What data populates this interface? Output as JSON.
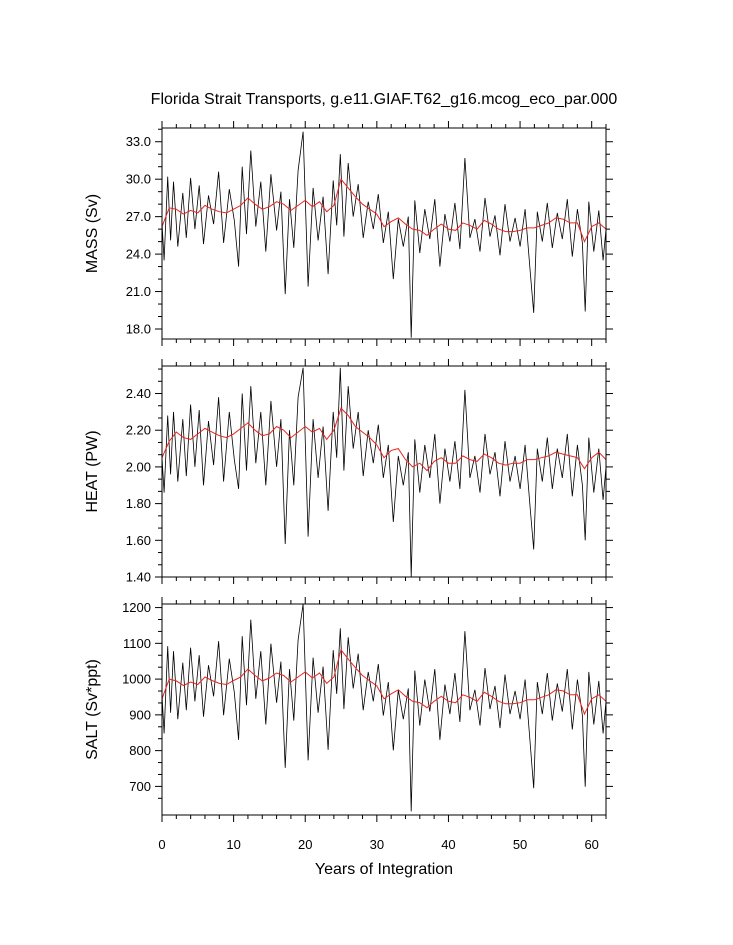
{
  "chart_data": {
    "type": "line",
    "title": "Florida Strait Transports, g.e11.GIAF.T62_g16.mcog_eco_par.000",
    "xlabel": "Years of Integration",
    "xlim": [
      0,
      62
    ],
    "xticks": [
      0,
      10,
      20,
      30,
      40,
      50,
      60
    ],
    "grid": false,
    "colors": {
      "raw": "#000000",
      "smoothed": "#e8251f"
    },
    "panels": [
      {
        "ylabel": "MASS (Sv)",
        "ylim": [
          17.2,
          34.1
        ],
        "yticks": [
          18.0,
          21.0,
          24.0,
          27.0,
          30.0,
          33.0
        ],
        "ytick_labels": [
          "18.0",
          "21.0",
          "24.0",
          "27.0",
          "30.0",
          "33.0"
        ],
        "smoothed": {
          "x": [
            0,
            1,
            2,
            3,
            4,
            5,
            6,
            7,
            8,
            9,
            10,
            11,
            12,
            13,
            14,
            15,
            16,
            17,
            18,
            19,
            20,
            21,
            22,
            23,
            24,
            25,
            26,
            27,
            28,
            29,
            30,
            31,
            32,
            33,
            34,
            35,
            36,
            37,
            38,
            39,
            40,
            41,
            42,
            43,
            44,
            45,
            46,
            47,
            48,
            49,
            50,
            51,
            52,
            53,
            54,
            55,
            56,
            57,
            58,
            59,
            60,
            61,
            62
          ],
          "y": [
            26.2,
            27.7,
            27.6,
            27.2,
            27.5,
            27.3,
            27.9,
            27.6,
            27.4,
            27.3,
            27.6,
            27.9,
            28.5,
            28.0,
            27.6,
            27.8,
            28.2,
            28.0,
            27.5,
            27.9,
            28.3,
            27.8,
            28.2,
            27.4,
            27.9,
            30.0,
            29.3,
            28.6,
            28.0,
            27.6,
            27.2,
            26.2,
            26.6,
            26.9,
            26.4,
            26.0,
            25.9,
            25.5,
            26.0,
            26.4,
            26.0,
            25.9,
            26.5,
            26.3,
            26.0,
            26.7,
            26.4,
            26.0,
            25.8,
            25.8,
            25.9,
            26.1,
            26.1,
            26.3,
            26.5,
            26.9,
            26.8,
            26.5,
            26.5,
            25.0,
            26.2,
            26.5,
            26.0
          ]
        },
        "raw": {
          "x": [
            0,
            0.3,
            0.8,
            1.2,
            1.6,
            2.2,
            2.9,
            3.4,
            4.0,
            4.6,
            5.2,
            5.8,
            6.5,
            7.2,
            7.9,
            8.6,
            9.4,
            10.1,
            10.7,
            11.2,
            11.8,
            12.4,
            13.1,
            13.8,
            14.5,
            15.2,
            16.0,
            16.6,
            17.2,
            17.8,
            18.4,
            19.0,
            19.7,
            20.4,
            21.1,
            21.8,
            22.5,
            23.2,
            23.9,
            24.4,
            24.9,
            25.4,
            26.0,
            26.7,
            27.4,
            28.1,
            28.8,
            29.5,
            30.2,
            30.9,
            31.6,
            32.3,
            33.0,
            33.7,
            34.4,
            34.8,
            35.3,
            36.0,
            36.7,
            37.4,
            38.1,
            38.8,
            39.5,
            40.2,
            40.9,
            41.6,
            42.3,
            43.0,
            43.7,
            44.4,
            45.1,
            45.8,
            46.5,
            47.2,
            47.9,
            48.6,
            49.3,
            50.0,
            50.7,
            51.4,
            51.9,
            52.4,
            53.1,
            53.8,
            54.5,
            55.2,
            55.9,
            56.6,
            57.3,
            58.0,
            58.7,
            59.1,
            59.6,
            60.3,
            61.0,
            61.6,
            62.0
          ],
          "y": [
            26.5,
            23.5,
            30.2,
            25.1,
            29.8,
            24.6,
            28.9,
            25.3,
            30.1,
            26.0,
            29.5,
            24.8,
            28.7,
            26.4,
            30.6,
            24.9,
            29.2,
            26.7,
            23.0,
            31.0,
            25.6,
            32.3,
            26.2,
            29.8,
            24.2,
            30.4,
            25.9,
            29.0,
            20.8,
            28.4,
            24.5,
            30.7,
            33.8,
            21.4,
            29.3,
            25.1,
            28.6,
            22.4,
            29.9,
            26.3,
            32.0,
            25.4,
            31.3,
            27.0,
            29.6,
            25.3,
            28.2,
            26.0,
            28.8,
            24.9,
            27.4,
            22.0,
            26.8,
            24.6,
            27.0,
            17.3,
            28.3,
            24.1,
            27.6,
            25.2,
            28.4,
            23.0,
            27.2,
            25.0,
            28.1,
            24.4,
            31.7,
            25.3,
            26.8,
            24.2,
            28.5,
            25.4,
            27.1,
            23.9,
            28.0,
            25.0,
            26.9,
            24.6,
            27.6,
            22.7,
            19.3,
            27.4,
            25.0,
            28.1,
            24.5,
            27.3,
            25.2,
            28.4,
            23.8,
            27.6,
            24.9,
            19.4,
            28.2,
            24.2,
            27.5,
            23.5,
            26.0
          ]
        }
      },
      {
        "ylabel": "HEAT (PW)",
        "ylim": [
          1.4,
          2.55
        ],
        "yticks": [
          1.4,
          1.6,
          1.8,
          2.0,
          2.2,
          2.4
        ],
        "ytick_labels": [
          "1.40",
          "1.60",
          "1.80",
          "2.00",
          "2.20",
          "2.40"
        ],
        "smoothed": {
          "x": [
            0,
            1,
            2,
            3,
            4,
            5,
            6,
            7,
            8,
            9,
            10,
            11,
            12,
            13,
            14,
            15,
            16,
            17,
            18,
            19,
            20,
            21,
            22,
            23,
            24,
            25,
            26,
            27,
            28,
            29,
            30,
            31,
            32,
            33,
            34,
            35,
            36,
            37,
            38,
            39,
            40,
            41,
            42,
            43,
            44,
            45,
            46,
            47,
            48,
            49,
            50,
            51,
            52,
            53,
            54,
            55,
            56,
            57,
            58,
            59,
            60,
            61,
            62
          ],
          "y": [
            2.05,
            2.14,
            2.19,
            2.16,
            2.15,
            2.18,
            2.21,
            2.19,
            2.17,
            2.16,
            2.18,
            2.21,
            2.24,
            2.2,
            2.17,
            2.18,
            2.22,
            2.2,
            2.16,
            2.19,
            2.22,
            2.19,
            2.21,
            2.15,
            2.2,
            2.32,
            2.28,
            2.22,
            2.19,
            2.16,
            2.12,
            2.05,
            2.09,
            2.1,
            2.04,
            2.0,
            2.02,
            1.98,
            2.03,
            2.05,
            2.02,
            2.02,
            2.06,
            2.04,
            2.03,
            2.07,
            2.05,
            2.02,
            2.01,
            2.02,
            2.02,
            2.04,
            2.04,
            2.05,
            2.06,
            2.08,
            2.07,
            2.06,
            2.05,
            1.99,
            2.05,
            2.08,
            2.04
          ]
        },
        "raw": {
          "x": [
            0,
            0.3,
            0.8,
            1.2,
            1.6,
            2.2,
            2.9,
            3.4,
            4.0,
            4.6,
            5.2,
            5.8,
            6.5,
            7.2,
            7.9,
            8.6,
            9.4,
            10.1,
            10.7,
            11.2,
            11.8,
            12.4,
            13.1,
            13.8,
            14.5,
            15.2,
            16.0,
            16.6,
            17.2,
            17.8,
            18.4,
            19.0,
            19.7,
            20.4,
            21.1,
            21.8,
            22.5,
            23.2,
            23.9,
            24.4,
            24.9,
            25.4,
            26.0,
            26.7,
            27.4,
            28.1,
            28.8,
            29.5,
            30.2,
            30.9,
            31.6,
            32.3,
            33.0,
            33.7,
            34.4,
            34.8,
            35.3,
            36.0,
            36.7,
            37.4,
            38.1,
            38.8,
            39.5,
            40.2,
            40.9,
            41.6,
            42.3,
            43.0,
            43.7,
            44.4,
            45.1,
            45.8,
            46.5,
            47.2,
            47.9,
            48.6,
            49.3,
            50.0,
            50.7,
            51.4,
            51.9,
            52.4,
            53.1,
            53.8,
            54.5,
            55.2,
            55.9,
            56.6,
            57.3,
            58.0,
            58.7,
            59.1,
            59.6,
            60.3,
            61.0,
            61.6,
            62.0
          ],
          "y": [
            2.05,
            1.86,
            2.28,
            1.96,
            2.3,
            1.92,
            2.26,
            1.95,
            2.34,
            2.0,
            2.31,
            1.9,
            2.25,
            2.01,
            2.38,
            1.92,
            2.3,
            2.04,
            1.88,
            2.4,
            1.98,
            2.44,
            2.02,
            2.3,
            1.9,
            2.36,
            2.0,
            2.26,
            1.58,
            2.2,
            1.9,
            2.38,
            2.54,
            1.62,
            2.26,
            1.94,
            2.22,
            1.76,
            2.3,
            2.05,
            2.54,
            1.98,
            2.44,
            2.1,
            2.3,
            1.95,
            2.2,
            2.02,
            2.23,
            1.94,
            2.12,
            1.7,
            2.06,
            1.9,
            2.08,
            1.4,
            2.15,
            1.86,
            2.12,
            1.94,
            2.18,
            1.8,
            2.1,
            1.92,
            2.14,
            1.88,
            2.42,
            1.94,
            2.06,
            1.86,
            2.18,
            1.96,
            2.08,
            1.84,
            2.14,
            1.92,
            2.06,
            1.88,
            2.12,
            1.78,
            1.55,
            2.1,
            1.92,
            2.16,
            1.88,
            2.1,
            1.94,
            2.18,
            1.84,
            2.12,
            1.9,
            1.6,
            2.16,
            1.86,
            2.1,
            1.82,
            2.0
          ]
        }
      },
      {
        "ylabel": "SALT (Sv*ppt)",
        "ylim": [
          620,
          1210
        ],
        "yticks": [
          700,
          800,
          900,
          1000,
          1100,
          1200
        ],
        "ytick_labels": [
          "700",
          "800",
          "900",
          "1000",
          "1100",
          "1200"
        ],
        "smoothed": {
          "x": [
            0,
            1,
            2,
            3,
            4,
            5,
            6,
            7,
            8,
            9,
            10,
            11,
            12,
            13,
            14,
            15,
            16,
            17,
            18,
            19,
            20,
            21,
            22,
            23,
            24,
            25,
            26,
            27,
            28,
            29,
            30,
            31,
            32,
            33,
            34,
            35,
            36,
            37,
            38,
            39,
            40,
            41,
            42,
            43,
            44,
            45,
            46,
            47,
            48,
            49,
            50,
            51,
            52,
            53,
            54,
            55,
            56,
            57,
            58,
            59,
            60,
            61,
            62
          ],
          "y": [
            945,
            1000,
            995,
            982,
            992,
            985,
            1006,
            996,
            988,
            985,
            996,
            1006,
            1028,
            1010,
            995,
            1003,
            1017,
            1010,
            992,
            1006,
            1020,
            1003,
            1017,
            988,
            1006,
            1082,
            1056,
            1032,
            1010,
            995,
            981,
            945,
            959,
            970,
            952,
            938,
            934,
            920,
            938,
            952,
            938,
            934,
            956,
            949,
            938,
            963,
            952,
            938,
            931,
            931,
            934,
            942,
            942,
            949,
            956,
            970,
            967,
            956,
            956,
            902,
            945,
            956,
            938
          ]
        },
        "raw": {
          "x": [
            0,
            0.3,
            0.8,
            1.2,
            1.6,
            2.2,
            2.9,
            3.4,
            4.0,
            4.6,
            5.2,
            5.8,
            6.5,
            7.2,
            7.9,
            8.6,
            9.4,
            10.1,
            10.7,
            11.2,
            11.8,
            12.4,
            13.1,
            13.8,
            14.5,
            15.2,
            16.0,
            16.6,
            17.2,
            17.8,
            18.4,
            19.0,
            19.7,
            20.4,
            21.1,
            21.8,
            22.5,
            23.2,
            23.9,
            24.4,
            24.9,
            25.4,
            26.0,
            26.7,
            27.4,
            28.1,
            28.8,
            29.5,
            30.2,
            30.9,
            31.6,
            32.3,
            33.0,
            33.7,
            34.4,
            34.8,
            35.3,
            36.0,
            36.7,
            37.4,
            38.1,
            38.8,
            39.5,
            40.2,
            40.9,
            41.6,
            42.3,
            43.0,
            43.7,
            44.4,
            45.1,
            45.8,
            46.5,
            47.2,
            47.9,
            48.6,
            49.3,
            50.0,
            50.7,
            51.4,
            51.9,
            52.4,
            53.1,
            53.8,
            54.5,
            55.2,
            55.9,
            56.6,
            57.3,
            58.0,
            58.7,
            59.1,
            59.6,
            60.3,
            61.0,
            61.6,
            62.0
          ],
          "y": [
            956,
            848,
            1092,
            906,
            1078,
            888,
            1046,
            913,
            1088,
            938,
            1067,
            895,
            1039,
            952,
            1106,
            899,
            1057,
            963,
            830,
            1120,
            927,
            1166,
            945,
            1078,
            873,
            1099,
            934,
            1049,
            752,
            1028,
            884,
            1110,
            1210,
            773,
            1060,
            906,
            1035,
            802,
            1081,
            959,
            1142,
            916,
            1117,
            974,
            1071,
            913,
            1020,
            938,
            1042,
            898,
            992,
            801,
            970,
            888,
            974,
            630,
            1024,
            870,
            999,
            909,
            1028,
            830,
            985,
            902,
            1017,
            880,
            1134,
            913,
            970,
            870,
            1031,
            916,
            981,
            863,
            1013,
            902,
            967,
            888,
            999,
            823,
            695,
            992,
            902,
            1017,
            884,
            988,
            909,
            1028,
            859,
            999,
            898,
            699,
            1020,
            873,
            995,
            848,
            938
          ]
        }
      }
    ]
  }
}
